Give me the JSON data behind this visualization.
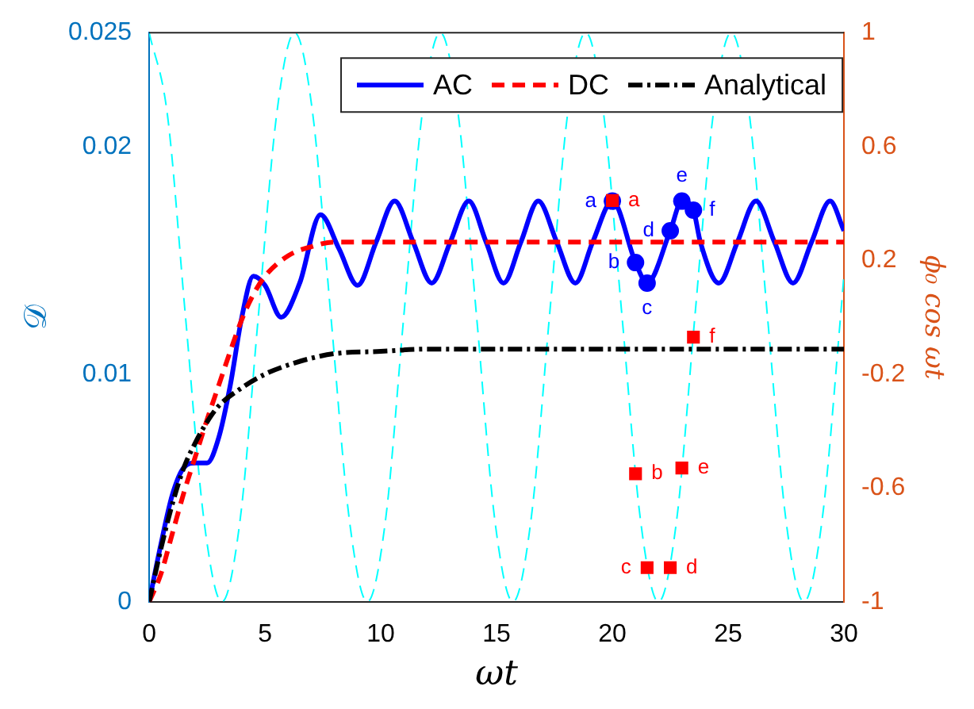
{
  "chart_data": {
    "type": "line",
    "xlabel": "ωt",
    "ylabel": "𝒟",
    "y2label": "ϕ₀ cos ωt",
    "xlim": [
      0,
      30
    ],
    "xticks": [
      0,
      5,
      10,
      15,
      20,
      25,
      30
    ],
    "ylim": [
      0,
      0.025
    ],
    "yticks": [
      0,
      0.01,
      0.02,
      0.025
    ],
    "y2lim": [
      -1,
      1
    ],
    "y2ticks": [
      -1,
      -0.6,
      -0.2,
      0.2,
      0.6,
      1
    ],
    "grid": false,
    "legend": "top",
    "series": [
      {
        "axis": "y2",
        "color": "#00ffff",
        "line_style": "dashed",
        "marker": "none",
        "x": [
          0,
          0.79,
          1.57,
          2.36,
          3.14,
          3.93,
          4.71,
          5.5,
          6.28,
          7.07,
          7.85,
          8.64,
          9.42,
          10.21,
          10.99,
          11.78,
          12.57,
          13.35,
          14.14,
          14.92,
          15.71,
          16.49,
          17.28,
          18.06,
          18.85,
          19.63,
          20.42,
          21.21,
          21.99,
          22.78,
          23.56,
          24.35,
          25.13,
          25.92,
          26.7,
          27.49,
          28.27,
          29.06,
          29.85,
          30
        ],
        "values": [
          1,
          0.71,
          0,
          -0.71,
          -1,
          -0.71,
          0,
          0.71,
          1,
          0.71,
          0,
          -0.71,
          -1,
          -0.71,
          0,
          0.71,
          1,
          0.71,
          0,
          -0.71,
          -1,
          -0.71,
          0,
          0.71,
          1,
          0.71,
          0,
          -0.71,
          -1,
          -0.71,
          0,
          0.71,
          1,
          0.71,
          0,
          -0.71,
          -1,
          -0.71,
          0,
          0.15
        ]
      },
      {
        "name": "AC",
        "color": "#0000ff",
        "line_style": "solid",
        "marker": "none",
        "x": [
          0,
          0.5,
          1,
          1.5,
          2,
          2.5,
          3,
          3.5,
          4,
          4.5,
          5,
          5.7,
          6.5,
          7.4,
          8.2,
          9,
          9.8,
          10.6,
          11.4,
          12.2,
          13,
          13.8,
          14.55,
          15.3,
          16.05,
          16.8,
          17.6,
          18.4,
          19.15,
          20,
          21,
          21.5,
          22.5,
          23,
          23.5,
          23.8,
          24.6,
          25.4,
          26.2,
          27,
          27.8,
          28.6,
          29.4,
          30
        ],
        "values": [
          0,
          0.0025,
          0.0047,
          0.0059,
          0.0061,
          0.0061,
          0.0072,
          0.0095,
          0.0125,
          0.0143,
          0.0139,
          0.0125,
          0.014,
          0.017,
          0.0155,
          0.0139,
          0.0158,
          0.0176,
          0.0158,
          0.014,
          0.0158,
          0.0176,
          0.0158,
          0.014,
          0.0158,
          0.0176,
          0.0158,
          0.014,
          0.0158,
          0.0176,
          0.0149,
          0.014,
          0.0163,
          0.0176,
          0.0172,
          0.0158,
          0.014,
          0.0158,
          0.0176,
          0.0158,
          0.014,
          0.0158,
          0.0176,
          0.0163
        ]
      },
      {
        "name": "DC",
        "color": "#ff0000",
        "line_style": "dashed",
        "marker": "none",
        "x": [
          0,
          0.5,
          1,
          1.5,
          2,
          2.5,
          3,
          3.5,
          4,
          4.5,
          5,
          6,
          7,
          8,
          10,
          30
        ],
        "values": [
          0,
          0.0012,
          0.003,
          0.0048,
          0.0064,
          0.008,
          0.0095,
          0.011,
          0.0124,
          0.0135,
          0.0143,
          0.0152,
          0.0156,
          0.0158,
          0.0158,
          0.0158
        ]
      },
      {
        "name": "Analytical",
        "color": "#000000",
        "line_style": "dashdot",
        "marker": "none",
        "x": [
          0,
          0.5,
          1,
          1.5,
          2,
          2.5,
          3,
          4,
          5,
          6,
          7,
          8,
          10,
          12,
          30
        ],
        "values": [
          0,
          0.0023,
          0.0043,
          0.0059,
          0.007,
          0.0079,
          0.0086,
          0.0094,
          0.01,
          0.0104,
          0.0107,
          0.0109,
          0.011,
          0.0111,
          0.0111
        ]
      },
      {
        "type": "scatter",
        "color": "#0000ff",
        "marker": "circle",
        "x": [
          20,
          21,
          21.5,
          22.5,
          23,
          23.5
        ],
        "values": [
          0.0176,
          0.0149,
          0.014,
          0.0163,
          0.0176,
          0.0172
        ],
        "value_labels": [
          "a",
          "b",
          "c",
          "d",
          "e",
          "f"
        ]
      },
      {
        "type": "scatter",
        "axis": "y2",
        "color": "#ff0000",
        "marker": "square",
        "x": [
          20,
          21,
          21.5,
          22.5,
          23,
          23.5
        ],
        "values": [
          0.41,
          -0.55,
          -0.88,
          -0.88,
          -0.53,
          -0.07
        ],
        "value_labels": [
          "a",
          "b",
          "c",
          "d",
          "e",
          "f"
        ]
      }
    ]
  }
}
